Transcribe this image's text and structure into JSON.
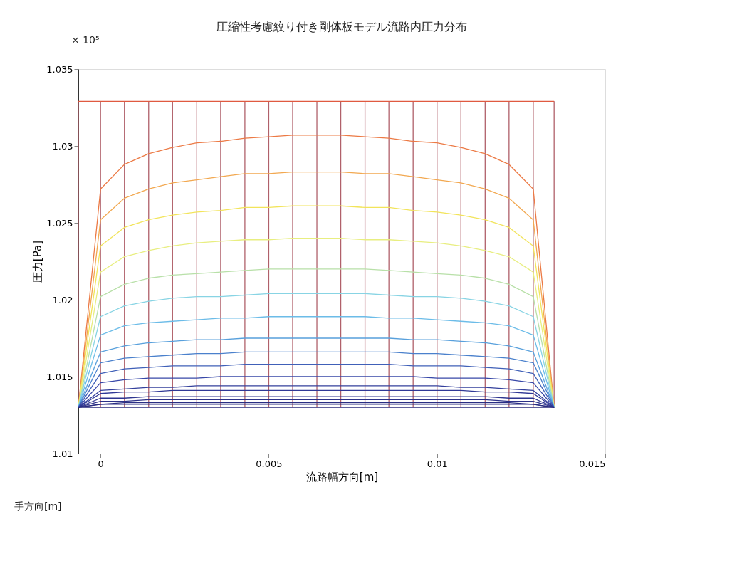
{
  "chart_data": {
    "type": "line",
    "title": "圧縮性考慮絞り付き剛体板モデル流路内圧力分布",
    "xlabel": "流路幅方向[m]",
    "ylabel": "圧力[Pa]",
    "annotations": [
      "× 10⁵",
      "手方向[m]"
    ],
    "x": [
      -0.00066,
      0,
      0.00071,
      0.00143,
      0.00214,
      0.00286,
      0.00357,
      0.00429,
      0.005,
      0.00571,
      0.00643,
      0.00714,
      0.00786,
      0.00857,
      0.00929,
      0.01,
      0.01071,
      0.01143,
      0.01214,
      0.01286,
      0.01348
    ],
    "xlim": [
      -0.00066,
      0.015
    ],
    "xticks": [
      0,
      0.005,
      0.01,
      0.015
    ],
    "ylim": [
      1.01,
      1.035
    ],
    "yticks": [
      1.01,
      1.015,
      1.02,
      1.025,
      1.03,
      1.035
    ],
    "grid": false,
    "legend": false,
    "marker": "none",
    "line_style": "solid",
    "series": [
      {
        "color": "#e05a40",
        "values": [
          1.0329,
          1.0329,
          1.0329,
          1.0329,
          1.0329,
          1.0329,
          1.0329,
          1.0329,
          1.0329,
          1.0329,
          1.0329,
          1.0329,
          1.0329,
          1.0329,
          1.0329,
          1.0329,
          1.0329,
          1.0329,
          1.0329,
          1.0329,
          1.0329
        ]
      },
      {
        "color": "#ec7a45",
        "values": [
          1.013,
          1.0272,
          1.0288,
          1.0295,
          1.0299,
          1.0302,
          1.0303,
          1.0305,
          1.0306,
          1.0307,
          1.0307,
          1.0307,
          1.0306,
          1.0305,
          1.0303,
          1.0302,
          1.0299,
          1.0295,
          1.0288,
          1.0272,
          1.013
        ]
      },
      {
        "color": "#f2a850",
        "values": [
          1.013,
          1.0252,
          1.0266,
          1.0272,
          1.0276,
          1.0278,
          1.028,
          1.0282,
          1.0282,
          1.0283,
          1.0283,
          1.0283,
          1.0282,
          1.0282,
          1.028,
          1.0278,
          1.0276,
          1.0272,
          1.0266,
          1.0252,
          1.013
        ]
      },
      {
        "color": "#f2e45a",
        "values": [
          1.013,
          1.0235,
          1.0247,
          1.0252,
          1.0255,
          1.0257,
          1.0258,
          1.026,
          1.026,
          1.0261,
          1.0261,
          1.0261,
          1.026,
          1.026,
          1.0258,
          1.0257,
          1.0255,
          1.0252,
          1.0247,
          1.0235,
          1.013
        ]
      },
      {
        "color": "#e8ee80",
        "values": [
          1.013,
          1.0218,
          1.0228,
          1.0232,
          1.0235,
          1.0237,
          1.0238,
          1.0239,
          1.0239,
          1.024,
          1.024,
          1.024,
          1.0239,
          1.0239,
          1.0238,
          1.0237,
          1.0235,
          1.0232,
          1.0228,
          1.0218,
          1.013
        ]
      },
      {
        "color": "#b8e0a8",
        "values": [
          1.013,
          1.0202,
          1.021,
          1.0214,
          1.0216,
          1.0217,
          1.0218,
          1.0219,
          1.022,
          1.022,
          1.022,
          1.022,
          1.022,
          1.0219,
          1.0218,
          1.0217,
          1.0216,
          1.0214,
          1.021,
          1.0202,
          1.013
        ]
      },
      {
        "color": "#88d4e4",
        "values": [
          1.013,
          1.0189,
          1.0196,
          1.0199,
          1.0201,
          1.0202,
          1.0202,
          1.0203,
          1.0204,
          1.0204,
          1.0204,
          1.0204,
          1.0204,
          1.0203,
          1.0202,
          1.0202,
          1.0201,
          1.0199,
          1.0196,
          1.0189,
          1.013
        ]
      },
      {
        "color": "#6cbce8",
        "values": [
          1.013,
          1.0177,
          1.0183,
          1.0185,
          1.0186,
          1.0187,
          1.0188,
          1.0188,
          1.0189,
          1.0189,
          1.0189,
          1.0189,
          1.0189,
          1.0188,
          1.0188,
          1.0187,
          1.0186,
          1.0185,
          1.0183,
          1.0177,
          1.013
        ]
      },
      {
        "color": "#58a0dc",
        "values": [
          1.013,
          1.0166,
          1.017,
          1.0172,
          1.0173,
          1.0174,
          1.0174,
          1.0175,
          1.0175,
          1.0175,
          1.0175,
          1.0175,
          1.0175,
          1.0175,
          1.0174,
          1.0174,
          1.0173,
          1.0172,
          1.017,
          1.0166,
          1.013
        ]
      },
      {
        "color": "#4a80cc",
        "values": [
          1.013,
          1.0159,
          1.0162,
          1.0163,
          1.0164,
          1.0165,
          1.0165,
          1.0166,
          1.0166,
          1.0166,
          1.0166,
          1.0166,
          1.0166,
          1.0166,
          1.0165,
          1.0165,
          1.0164,
          1.0163,
          1.0162,
          1.0159,
          1.013
        ]
      },
      {
        "color": "#4060b8",
        "values": [
          1.013,
          1.0152,
          1.0155,
          1.0156,
          1.0157,
          1.0157,
          1.0157,
          1.0158,
          1.0158,
          1.0158,
          1.0158,
          1.0158,
          1.0158,
          1.0158,
          1.0157,
          1.0157,
          1.0157,
          1.0156,
          1.0155,
          1.0152,
          1.013
        ]
      },
      {
        "color": "#3848a8",
        "values": [
          1.013,
          1.0146,
          1.0148,
          1.0149,
          1.0149,
          1.0149,
          1.015,
          1.015,
          1.015,
          1.015,
          1.015,
          1.015,
          1.015,
          1.015,
          1.015,
          1.0149,
          1.0149,
          1.0149,
          1.0148,
          1.0146,
          1.013
        ]
      },
      {
        "color": "#34409c",
        "values": [
          1.013,
          1.0141,
          1.0142,
          1.0143,
          1.0143,
          1.0144,
          1.0144,
          1.0144,
          1.0144,
          1.0144,
          1.0144,
          1.0144,
          1.0144,
          1.0144,
          1.0144,
          1.0144,
          1.0143,
          1.0143,
          1.0142,
          1.0141,
          1.013
        ]
      },
      {
        "color": "#303896",
        "values": [
          1.013,
          1.0139,
          1.014,
          1.014,
          1.0141,
          1.0141,
          1.0141,
          1.0141,
          1.0141,
          1.0141,
          1.0141,
          1.0141,
          1.0141,
          1.0141,
          1.0141,
          1.0141,
          1.0141,
          1.014,
          1.014,
          1.0139,
          1.013
        ]
      },
      {
        "color": "#2e3490",
        "values": [
          1.013,
          1.0136,
          1.0136,
          1.0137,
          1.0137,
          1.0137,
          1.0137,
          1.0137,
          1.0137,
          1.0137,
          1.0137,
          1.0137,
          1.0137,
          1.0137,
          1.0137,
          1.0137,
          1.0137,
          1.0137,
          1.0136,
          1.0136,
          1.013
        ]
      },
      {
        "color": "#2c3088",
        "values": [
          1.013,
          1.0134,
          1.0134,
          1.0135,
          1.0135,
          1.0135,
          1.0135,
          1.0135,
          1.0135,
          1.0135,
          1.0135,
          1.0135,
          1.0135,
          1.0135,
          1.0135,
          1.0135,
          1.0135,
          1.0135,
          1.0134,
          1.0134,
          1.013
        ]
      },
      {
        "color": "#2a2e84",
        "values": [
          1.013,
          1.0132,
          1.0133,
          1.0133,
          1.0133,
          1.0133,
          1.0133,
          1.0133,
          1.0133,
          1.0133,
          1.0133,
          1.0133,
          1.0133,
          1.0133,
          1.0133,
          1.0133,
          1.0133,
          1.0133,
          1.0133,
          1.0132,
          1.013
        ]
      },
      {
        "color": "#2a2c80",
        "values": [
          1.013,
          1.0132,
          1.0132,
          1.0132,
          1.0132,
          1.0132,
          1.0132,
          1.0132,
          1.0132,
          1.0132,
          1.0132,
          1.0132,
          1.0132,
          1.0132,
          1.0132,
          1.0132,
          1.0132,
          1.0132,
          1.0132,
          1.0132,
          1.013
        ]
      },
      {
        "color": "#2a2a7c",
        "values": [
          1.013,
          1.013,
          1.013,
          1.013,
          1.013,
          1.013,
          1.013,
          1.013,
          1.013,
          1.013,
          1.013,
          1.013,
          1.013,
          1.013,
          1.013,
          1.013,
          1.013,
          1.013,
          1.013,
          1.013,
          1.013
        ]
      },
      {
        "color": "#b0606a",
        "x": [
          -0.00066,
          -0.00066
        ],
        "values": [
          1.0329,
          1.013
        ]
      },
      {
        "color": "#b0606a",
        "x": [
          0,
          0,
          0,
          0,
          0,
          0,
          0,
          0,
          0,
          0,
          0,
          0,
          0,
          0,
          0,
          0,
          0,
          0,
          0
        ],
        "values": [
          1.0329,
          1.0272,
          1.0252,
          1.0235,
          1.0218,
          1.0202,
          1.0189,
          1.0177,
          1.0166,
          1.0159,
          1.0152,
          1.0146,
          1.0141,
          1.0139,
          1.0136,
          1.0134,
          1.0132,
          1.0132,
          1.013
        ]
      },
      {
        "color": "#b0606a",
        "x": [
          0.00071,
          0.00071,
          0.00071,
          0.00071,
          0.00071,
          0.00071,
          0.00071,
          0.00071,
          0.00071,
          0.00071,
          0.00071,
          0.00071,
          0.00071,
          0.00071,
          0.00071,
          0.00071,
          0.00071,
          0.00071,
          0.00071
        ],
        "values": [
          1.0329,
          1.0288,
          1.0266,
          1.0247,
          1.0228,
          1.021,
          1.0196,
          1.0183,
          1.017,
          1.0162,
          1.0155,
          1.0148,
          1.0142,
          1.014,
          1.0136,
          1.0134,
          1.0133,
          1.0132,
          1.013
        ]
      },
      {
        "color": "#b0606a",
        "x": [
          0.00143,
          0.00143,
          0.00143,
          0.00143,
          0.00143,
          0.00143,
          0.00143,
          0.00143,
          0.00143,
          0.00143,
          0.00143,
          0.00143,
          0.00143,
          0.00143,
          0.00143,
          0.00143,
          0.00143,
          0.00143,
          0.00143
        ],
        "values": [
          1.0329,
          1.0295,
          1.0272,
          1.0252,
          1.0232,
          1.0214,
          1.0199,
          1.0185,
          1.0172,
          1.0163,
          1.0156,
          1.0149,
          1.0143,
          1.014,
          1.0137,
          1.0135,
          1.0133,
          1.0132,
          1.013
        ]
      },
      {
        "color": "#b0606a",
        "x": [
          0.00214,
          0.00214,
          0.00214,
          0.00214,
          0.00214,
          0.00214,
          0.00214,
          0.00214,
          0.00214,
          0.00214,
          0.00214,
          0.00214,
          0.00214,
          0.00214,
          0.00214,
          0.00214,
          0.00214,
          0.00214,
          0.00214
        ],
        "values": [
          1.0329,
          1.0299,
          1.0276,
          1.0255,
          1.0235,
          1.0216,
          1.0201,
          1.0186,
          1.0173,
          1.0164,
          1.0157,
          1.0149,
          1.0143,
          1.0141,
          1.0137,
          1.0135,
          1.0133,
          1.0132,
          1.013
        ]
      },
      {
        "color": "#b0606a",
        "x": [
          0.00286,
          0.00286,
          0.00286,
          0.00286,
          0.00286,
          0.00286,
          0.00286,
          0.00286,
          0.00286,
          0.00286,
          0.00286,
          0.00286,
          0.00286,
          0.00286,
          0.00286,
          0.00286,
          0.00286,
          0.00286,
          0.00286
        ],
        "values": [
          1.0329,
          1.0302,
          1.0278,
          1.0257,
          1.0237,
          1.0217,
          1.0202,
          1.0187,
          1.0174,
          1.0165,
          1.0157,
          1.0149,
          1.0144,
          1.0141,
          1.0137,
          1.0135,
          1.0133,
          1.0132,
          1.013
        ]
      },
      {
        "color": "#b0606a",
        "x": [
          0.00357,
          0.00357,
          0.00357,
          0.00357,
          0.00357,
          0.00357,
          0.00357,
          0.00357,
          0.00357,
          0.00357,
          0.00357,
          0.00357,
          0.00357,
          0.00357,
          0.00357,
          0.00357,
          0.00357,
          0.00357,
          0.00357
        ],
        "values": [
          1.0329,
          1.0303,
          1.028,
          1.0258,
          1.0238,
          1.0218,
          1.0202,
          1.0188,
          1.0174,
          1.0165,
          1.0157,
          1.015,
          1.0144,
          1.0141,
          1.0137,
          1.0135,
          1.0133,
          1.0132,
          1.013
        ]
      },
      {
        "color": "#b0606a",
        "x": [
          0.00429,
          0.00429,
          0.00429,
          0.00429,
          0.00429,
          0.00429,
          0.00429,
          0.00429,
          0.00429,
          0.00429,
          0.00429,
          0.00429,
          0.00429,
          0.00429,
          0.00429,
          0.00429,
          0.00429,
          0.00429,
          0.00429
        ],
        "values": [
          1.0329,
          1.0305,
          1.0282,
          1.026,
          1.0239,
          1.0219,
          1.0203,
          1.0188,
          1.0175,
          1.0166,
          1.0158,
          1.015,
          1.0144,
          1.0141,
          1.0137,
          1.0135,
          1.0133,
          1.0132,
          1.013
        ]
      },
      {
        "color": "#b0606a",
        "x": [
          0.005,
          0.005,
          0.005,
          0.005,
          0.005,
          0.005,
          0.005,
          0.005,
          0.005,
          0.005,
          0.005,
          0.005,
          0.005,
          0.005,
          0.005,
          0.005,
          0.005,
          0.005,
          0.005
        ],
        "values": [
          1.0329,
          1.0306,
          1.0282,
          1.026,
          1.0239,
          1.022,
          1.0204,
          1.0189,
          1.0175,
          1.0166,
          1.0158,
          1.015,
          1.0144,
          1.0141,
          1.0137,
          1.0135,
          1.0133,
          1.0132,
          1.013
        ]
      },
      {
        "color": "#b0606a",
        "x": [
          0.00571,
          0.00571,
          0.00571,
          0.00571,
          0.00571,
          0.00571,
          0.00571,
          0.00571,
          0.00571,
          0.00571,
          0.00571,
          0.00571,
          0.00571,
          0.00571,
          0.00571,
          0.00571,
          0.00571,
          0.00571,
          0.00571
        ],
        "values": [
          1.0329,
          1.0307,
          1.0283,
          1.0261,
          1.024,
          1.022,
          1.0204,
          1.0189,
          1.0175,
          1.0166,
          1.0158,
          1.015,
          1.0144,
          1.0141,
          1.0137,
          1.0135,
          1.0133,
          1.0132,
          1.013
        ]
      },
      {
        "color": "#b0606a",
        "x": [
          0.00643,
          0.00643,
          0.00643,
          0.00643,
          0.00643,
          0.00643,
          0.00643,
          0.00643,
          0.00643,
          0.00643,
          0.00643,
          0.00643,
          0.00643,
          0.00643,
          0.00643,
          0.00643,
          0.00643,
          0.00643,
          0.00643
        ],
        "values": [
          1.0329,
          1.0307,
          1.0283,
          1.0261,
          1.024,
          1.022,
          1.0204,
          1.0189,
          1.0175,
          1.0166,
          1.0158,
          1.015,
          1.0144,
          1.0141,
          1.0137,
          1.0135,
          1.0133,
          1.0132,
          1.013
        ]
      },
      {
        "color": "#b0606a",
        "x": [
          0.00714,
          0.00714,
          0.00714,
          0.00714,
          0.00714,
          0.00714,
          0.00714,
          0.00714,
          0.00714,
          0.00714,
          0.00714,
          0.00714,
          0.00714,
          0.00714,
          0.00714,
          0.00714,
          0.00714,
          0.00714,
          0.00714
        ],
        "values": [
          1.0329,
          1.0307,
          1.0283,
          1.0261,
          1.024,
          1.022,
          1.0204,
          1.0189,
          1.0175,
          1.0166,
          1.0158,
          1.015,
          1.0144,
          1.0141,
          1.0137,
          1.0135,
          1.0133,
          1.0132,
          1.013
        ]
      },
      {
        "color": "#b0606a",
        "x": [
          0.00786,
          0.00786,
          0.00786,
          0.00786,
          0.00786,
          0.00786,
          0.00786,
          0.00786,
          0.00786,
          0.00786,
          0.00786,
          0.00786,
          0.00786,
          0.00786,
          0.00786,
          0.00786,
          0.00786,
          0.00786,
          0.00786
        ],
        "values": [
          1.0329,
          1.0306,
          1.0282,
          1.026,
          1.0239,
          1.022,
          1.0204,
          1.0189,
          1.0175,
          1.0166,
          1.0158,
          1.015,
          1.0144,
          1.0141,
          1.0137,
          1.0135,
          1.0133,
          1.0132,
          1.013
        ]
      },
      {
        "color": "#b0606a",
        "x": [
          0.00857,
          0.00857,
          0.00857,
          0.00857,
          0.00857,
          0.00857,
          0.00857,
          0.00857,
          0.00857,
          0.00857,
          0.00857,
          0.00857,
          0.00857,
          0.00857,
          0.00857,
          0.00857,
          0.00857,
          0.00857,
          0.00857
        ],
        "values": [
          1.0329,
          1.0305,
          1.0282,
          1.026,
          1.0239,
          1.0219,
          1.0203,
          1.0188,
          1.0175,
          1.0166,
          1.0158,
          1.015,
          1.0144,
          1.0141,
          1.0137,
          1.0135,
          1.0133,
          1.0132,
          1.013
        ]
      },
      {
        "color": "#b0606a",
        "x": [
          0.00929,
          0.00929,
          0.00929,
          0.00929,
          0.00929,
          0.00929,
          0.00929,
          0.00929,
          0.00929,
          0.00929,
          0.00929,
          0.00929,
          0.00929,
          0.00929,
          0.00929,
          0.00929,
          0.00929,
          0.00929,
          0.00929
        ],
        "values": [
          1.0329,
          1.0303,
          1.028,
          1.0258,
          1.0238,
          1.0218,
          1.0202,
          1.0188,
          1.0174,
          1.0165,
          1.0157,
          1.015,
          1.0144,
          1.0141,
          1.0137,
          1.0135,
          1.0133,
          1.0132,
          1.013
        ]
      },
      {
        "color": "#b0606a",
        "x": [
          0.01,
          0.01,
          0.01,
          0.01,
          0.01,
          0.01,
          0.01,
          0.01,
          0.01,
          0.01,
          0.01,
          0.01,
          0.01,
          0.01,
          0.01,
          0.01,
          0.01,
          0.01,
          0.01
        ],
        "values": [
          1.0329,
          1.0302,
          1.0278,
          1.0257,
          1.0237,
          1.0217,
          1.0202,
          1.0187,
          1.0174,
          1.0165,
          1.0157,
          1.0149,
          1.0144,
          1.0141,
          1.0137,
          1.0135,
          1.0133,
          1.0132,
          1.013
        ]
      },
      {
        "color": "#b0606a",
        "x": [
          0.01071,
          0.01071,
          0.01071,
          0.01071,
          0.01071,
          0.01071,
          0.01071,
          0.01071,
          0.01071,
          0.01071,
          0.01071,
          0.01071,
          0.01071,
          0.01071,
          0.01071,
          0.01071,
          0.01071,
          0.01071,
          0.01071
        ],
        "values": [
          1.0329,
          1.0299,
          1.0276,
          1.0255,
          1.0235,
          1.0216,
          1.0201,
          1.0186,
          1.0173,
          1.0164,
          1.0157,
          1.0149,
          1.0143,
          1.0141,
          1.0137,
          1.0135,
          1.0133,
          1.0132,
          1.013
        ]
      },
      {
        "color": "#b0606a",
        "x": [
          0.01143,
          0.01143,
          0.01143,
          0.01143,
          0.01143,
          0.01143,
          0.01143,
          0.01143,
          0.01143,
          0.01143,
          0.01143,
          0.01143,
          0.01143,
          0.01143,
          0.01143,
          0.01143,
          0.01143,
          0.01143,
          0.01143
        ],
        "values": [
          1.0329,
          1.0295,
          1.0272,
          1.0252,
          1.0232,
          1.0214,
          1.0199,
          1.0185,
          1.0172,
          1.0163,
          1.0156,
          1.0149,
          1.0143,
          1.014,
          1.0137,
          1.0135,
          1.0133,
          1.0132,
          1.013
        ]
      },
      {
        "color": "#b0606a",
        "x": [
          0.01214,
          0.01214,
          0.01214,
          0.01214,
          0.01214,
          0.01214,
          0.01214,
          0.01214,
          0.01214,
          0.01214,
          0.01214,
          0.01214,
          0.01214,
          0.01214,
          0.01214,
          0.01214,
          0.01214,
          0.01214,
          0.01214
        ],
        "values": [
          1.0329,
          1.0288,
          1.0266,
          1.0247,
          1.0228,
          1.021,
          1.0196,
          1.0183,
          1.017,
          1.0162,
          1.0155,
          1.0148,
          1.0142,
          1.014,
          1.0136,
          1.0134,
          1.0133,
          1.0132,
          1.013
        ]
      },
      {
        "color": "#b0606a",
        "x": [
          0.01286,
          0.01286,
          0.01286,
          0.01286,
          0.01286,
          0.01286,
          0.01286,
          0.01286,
          0.01286,
          0.01286,
          0.01286,
          0.01286,
          0.01286,
          0.01286,
          0.01286,
          0.01286,
          0.01286,
          0.01286,
          0.01286
        ],
        "values": [
          1.0329,
          1.0272,
          1.0252,
          1.0235,
          1.0218,
          1.0202,
          1.0189,
          1.0177,
          1.0166,
          1.0159,
          1.0152,
          1.0146,
          1.0141,
          1.0139,
          1.0136,
          1.0134,
          1.0132,
          1.0132,
          1.013
        ]
      },
      {
        "color": "#b0606a",
        "x": [
          0.01348,
          0.01348
        ],
        "values": [
          1.0329,
          1.013
        ]
      }
    ]
  }
}
